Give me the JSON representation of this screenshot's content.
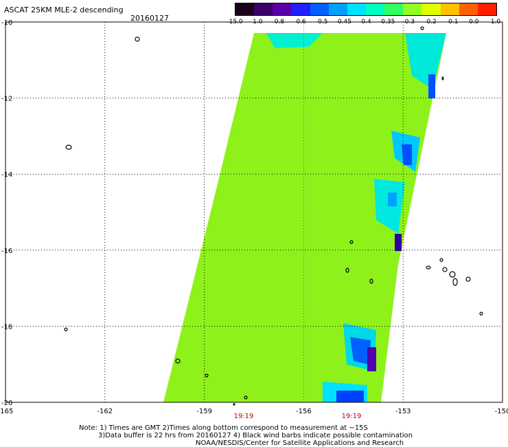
{
  "header": {
    "title": "ASCAT 25KM MLE-2 descending",
    "date": "20160127"
  },
  "colorbar": {
    "labels": [
      "-15.0",
      "-1.0",
      "-0.8",
      "-0.6",
      "-0.5",
      "-0.45",
      "-0.4",
      "-0.35",
      "-0.3",
      "-0.2",
      "-0.1",
      "0.0",
      "1.0"
    ],
    "colors": [
      "#1a001a",
      "#3a006a",
      "#5a00aa",
      "#2020ff",
      "#0060ff",
      "#00a0ff",
      "#00e0ff",
      "#00ffc0",
      "#30ff60",
      "#90ff20",
      "#e0ff00",
      "#ffc000",
      "#ff6000",
      "#ff2000"
    ]
  },
  "map": {
    "lat_labels": [
      "-10",
      "-12",
      "-14",
      "-16",
      "-18",
      "-20"
    ],
    "lon_labels": [
      "-165",
      "-162",
      "-159",
      "-156",
      "-153",
      "-150"
    ],
    "lat_values": [
      -10,
      -12,
      -14,
      -16,
      -18,
      -20
    ],
    "lon_values": [
      -165,
      -162,
      -159,
      -156,
      -153,
      -150
    ],
    "lat_range": [
      -20,
      -10
    ],
    "lon_range": [
      -165,
      -150
    ],
    "swath_color": "#8ef21a",
    "time_labels": [
      "19:19",
      "19:19"
    ]
  },
  "notes": {
    "line1": "Note: 1) Times are GMT 2)Times along bottom correspond to measurement at ~15S",
    "line2": "3)Data buffer is 22 hrs from 20160127 4) Black wind barbs indicate possible contamination",
    "line3": "NOAA/NESDIS/Center for Satellite Applications and Research"
  }
}
